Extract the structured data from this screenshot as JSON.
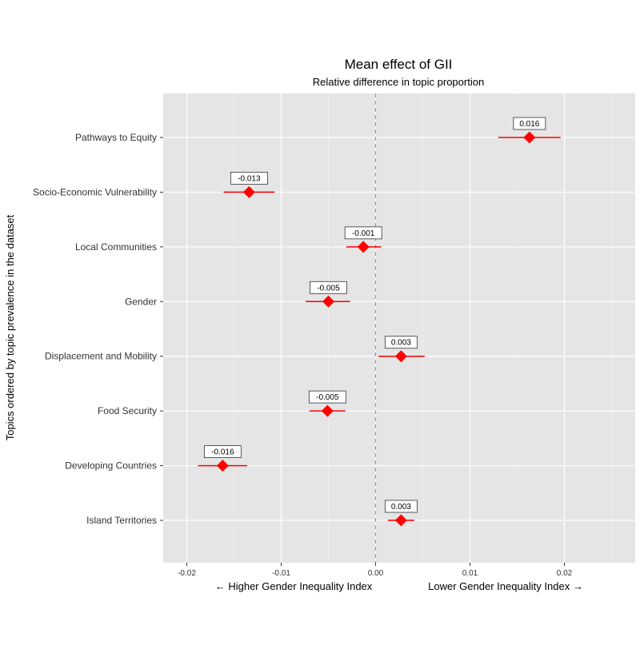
{
  "chart_data": {
    "type": "scatter",
    "title": "Mean effect of GII",
    "subtitle": "Relative difference in topic proportion",
    "ylabel": "Topics ordered by topic prevalence in the dataset",
    "xlabel_left": "← Higher Gender Inequality Index",
    "xlabel_right": "Lower Gender Inequality Index →",
    "xlim": [
      -0.0225,
      0.0275
    ],
    "x_ticks": [
      -0.02,
      -0.01,
      0.0,
      0.01,
      0.02
    ],
    "x_tick_labels": [
      "-0.02",
      "-0.01",
      "0.00",
      "0.01",
      "0.02"
    ],
    "reference_line": 0,
    "grid": true,
    "colors": {
      "panel": "#e5e5e5",
      "grid": "#ffffff",
      "point": "#ff0000",
      "reference": "#9a9a9a"
    },
    "categories": [
      "Pathways to Equity",
      "Socio-Economic Vulnerability",
      "Local Communities",
      "Gender",
      "Displacement and Mobility",
      "Food Security",
      "Developing Countries",
      "Island Territories"
    ],
    "estimates": [
      0.0163,
      -0.0134,
      -0.0013,
      -0.005,
      0.0027,
      -0.0051,
      -0.0162,
      0.0027
    ],
    "ci_low": [
      0.013,
      -0.0161,
      -0.0031,
      -0.0074,
      0.0003,
      -0.007,
      -0.0188,
      0.0013
    ],
    "ci_high": [
      0.0196,
      -0.0107,
      0.0006,
      -0.0027,
      0.0052,
      -0.0032,
      -0.0136,
      0.0041
    ],
    "labels": [
      "0.016",
      "-0.013",
      "-0.001",
      "-0.005",
      "0.003",
      "-0.005",
      "-0.016",
      "0.003"
    ]
  }
}
